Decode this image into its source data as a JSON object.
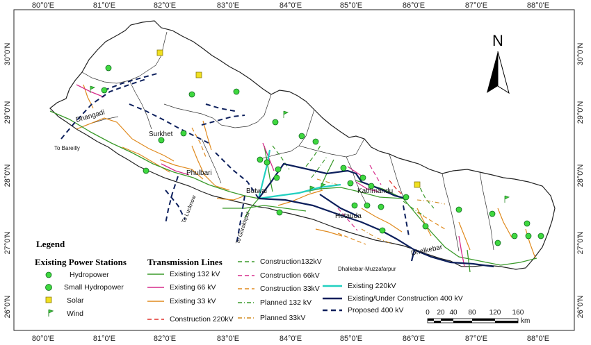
{
  "axes": {
    "top_ticks": [
      "80°0'E",
      "81°0'E",
      "82°0'E",
      "83°0'E",
      "84°0'E",
      "85°0'E",
      "86°0'E",
      "87°0'E",
      "88°0'E"
    ],
    "bottom_ticks": [
      "80°0'E",
      "81°0'E",
      "82°0'E",
      "83°0'E",
      "84°0'E",
      "85°0'E",
      "86°0'E",
      "87°0'E",
      "88°0'E"
    ],
    "left_ticks": [
      "30°0'N",
      "29°0'N",
      "28°0'N",
      "27°0'N",
      "26°0'N"
    ],
    "right_ticks": [
      "30°0'N",
      "29°0'N",
      "28°0'N",
      "27°0'N",
      "26°0'N"
    ]
  },
  "north_arrow": {
    "label": "N"
  },
  "place_labels": {
    "dhangadi": "Dhangadi",
    "to_bareilly": "To Bareilly",
    "surkhet": "Surkhet",
    "phulbari": "Phulbari",
    "butwal": "Butwal",
    "kathmandu": "Kathmandu",
    "hetauda": "Hetauda",
    "dhalkebar": "Dhalkebar",
    "dhalkebar_muzzafarpur": "Dhalkebar-Muzzafarpur",
    "to_lucknow": "To Lucknow",
    "to_gorakhpur": "To Gorakhpur"
  },
  "legend": {
    "title": "Legend",
    "stations_heading": "Existing Power Stations",
    "stations": {
      "hydropower": "Hydropower",
      "small_hydropower": "Small Hydropower",
      "solar": "Solar",
      "wind": "Wind"
    },
    "lines_heading": "Transmission Lines",
    "lines": {
      "e132": "Existing 132 kV",
      "e66": "Existing 66 kV",
      "e33": "Existing 33 kV",
      "c220": "Construction 220kV",
      "c132": "Construction132kV",
      "c66": "Construction 66kV",
      "c33": "Construction 33kV",
      "p132": "Planned 132 kV",
      "p33": "Planned 33kV",
      "e220": "Existing 220kV",
      "e400": "Existing/Under Construction 400 kV",
      "p400": "Proposed 400 kV"
    }
  },
  "scale_bar": {
    "labels": [
      "0",
      "20",
      "40",
      "80",
      "120",
      "160"
    ],
    "unit": "km"
  },
  "colors": {
    "existing_132": "#3a9a2a",
    "existing_66": "#d62d8c",
    "existing_33": "#e08a1e",
    "construction_220": "#e0302a",
    "construction_132": "#3a9a2a",
    "construction_66": "#d62d8c",
    "construction_33": "#e08a1e",
    "planned_132": "#3a9a2a",
    "planned_33": "#d08a1e",
    "existing_220": "#22d0c0",
    "line_400": "#0c1f5c",
    "proposed_400": "#0c1f5c",
    "hydropower": "#2ecc2e",
    "solar": "#f0e020",
    "wind": "#3fcf3f"
  }
}
